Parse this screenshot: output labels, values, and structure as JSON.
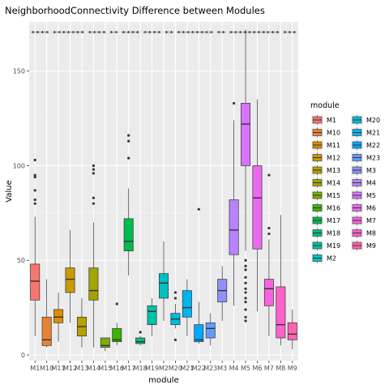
{
  "chart_data": {
    "type": "boxplot",
    "title": "NeighborhoodConnectivity Difference between Modules",
    "xlabel": "module",
    "ylabel": "Value",
    "ylim": [
      -3,
      176
    ],
    "yticks": [
      0,
      50,
      100,
      150
    ],
    "legend_title": "module",
    "legend_position": "right",
    "significance": "****  *******  **** ** ****  **** ** ********  ** ***********  ***",
    "series": [
      {
        "name": "M1",
        "color": "#F8766D",
        "q1": 29,
        "median": 39,
        "q3": 48,
        "lo": 10,
        "hi": 73,
        "outliers": [
          80,
          82,
          87,
          94,
          95,
          103
        ]
      },
      {
        "name": "M10",
        "color": "#EA8331",
        "q1": 5,
        "median": 8,
        "q3": 20,
        "lo": 4,
        "hi": 40,
        "outliers": []
      },
      {
        "name": "M11",
        "color": "#DC8E00",
        "q1": 17,
        "median": 20,
        "q3": 24,
        "lo": 7,
        "hi": 33,
        "outliers": []
      },
      {
        "name": "M12",
        "color": "#CB9A00",
        "q1": 33,
        "median": 40,
        "q3": 46,
        "lo": 17,
        "hi": 66,
        "outliers": []
      },
      {
        "name": "M13",
        "color": "#B7A200",
        "q1": 10,
        "median": 15,
        "q3": 20,
        "lo": 4,
        "hi": 30,
        "outliers": []
      },
      {
        "name": "M14",
        "color": "#A3A500",
        "q1": 29,
        "median": 34,
        "q3": 46,
        "lo": 4,
        "hi": 70,
        "outliers": [
          80,
          83,
          96,
          98,
          100
        ]
      },
      {
        "name": "M15",
        "color": "#7CAE00",
        "q1": 4,
        "median": 5,
        "q3": 9,
        "lo": 2,
        "hi": 9,
        "outliers": []
      },
      {
        "name": "M16",
        "color": "#39B600",
        "q1": 7,
        "median": 8,
        "q3": 14,
        "lo": 5,
        "hi": 17,
        "outliers": [
          27
        ]
      },
      {
        "name": "M17",
        "color": "#00BB4E",
        "q1": 55,
        "median": 60,
        "q3": 72,
        "lo": 42,
        "hi": 88,
        "outliers": [
          104,
          113,
          116
        ]
      },
      {
        "name": "M18",
        "color": "#00BF7D",
        "q1": 6,
        "median": 7,
        "q3": 9,
        "lo": 5,
        "hi": 10,
        "outliers": [
          12
        ]
      },
      {
        "name": "M19",
        "color": "#00C1A3",
        "q1": 16,
        "median": 23,
        "q3": 26,
        "lo": 10,
        "hi": 30,
        "outliers": []
      },
      {
        "name": "M2",
        "color": "#00C0C4",
        "q1": 30,
        "median": 38,
        "q3": 43,
        "lo": 18,
        "hi": 60,
        "outliers": []
      },
      {
        "name": "M20",
        "color": "#00BCE0",
        "q1": 16,
        "median": 19,
        "q3": 22,
        "lo": 14,
        "hi": 27,
        "outliers": [
          8,
          30,
          33
        ]
      },
      {
        "name": "M21",
        "color": "#00B4EF",
        "q1": 20,
        "median": 25,
        "q3": 34,
        "lo": 10,
        "hi": 40,
        "outliers": []
      },
      {
        "name": "M22",
        "color": "#00A8FF",
        "q1": 7,
        "median": 8,
        "q3": 16,
        "lo": 6,
        "hi": 28,
        "outliers": [
          77
        ]
      },
      {
        "name": "M23",
        "color": "#619CFF",
        "q1": 9,
        "median": 14,
        "q3": 17,
        "lo": 5,
        "hi": 22,
        "outliers": []
      },
      {
        "name": "M3",
        "color": "#8F91FF",
        "q1": 28,
        "median": 34,
        "q3": 40,
        "lo": 18,
        "hi": 47,
        "outliers": []
      },
      {
        "name": "M4",
        "color": "#B983FF",
        "q1": 53,
        "median": 66,
        "q3": 82,
        "lo": 26,
        "hi": 124,
        "outliers": [
          133
        ]
      },
      {
        "name": "M5",
        "color": "#D774FD",
        "q1": 100,
        "median": 122,
        "q3": 133,
        "lo": 55,
        "hi": 172,
        "outliers": [
          18,
          20,
          24,
          28,
          30,
          33,
          35,
          38,
          41,
          45,
          47,
          50
        ]
      },
      {
        "name": "M6",
        "color": "#EC69EF",
        "q1": 56,
        "median": 83,
        "q3": 100,
        "lo": 23,
        "hi": 135,
        "outliers": []
      },
      {
        "name": "M7",
        "color": "#F863DF",
        "q1": 26,
        "median": 35,
        "q3": 40,
        "lo": 10,
        "hi": 61,
        "outliers": [
          64,
          67,
          95
        ]
      },
      {
        "name": "M8",
        "color": "#FF61C8",
        "q1": 9,
        "median": 16,
        "q3": 36,
        "lo": 5,
        "hi": 74,
        "outliers": []
      },
      {
        "name": "M9",
        "color": "#FF64B0",
        "q1": 8,
        "median": 11,
        "q3": 17,
        "lo": 3,
        "hi": 24,
        "outliers": []
      }
    ]
  }
}
